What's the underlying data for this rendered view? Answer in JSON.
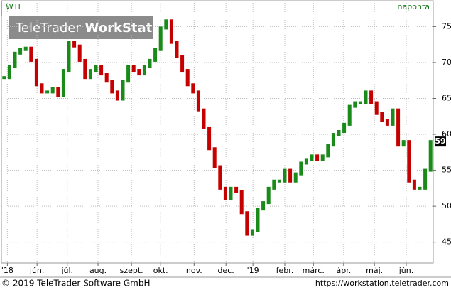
{
  "chart_data": {
    "type": "ohlc-close",
    "title": "WTI",
    "subtitle": "naponta",
    "watermark": {
      "brand": "TeleTrader",
      "product": "WorkStation"
    },
    "footer": {
      "copyright": "© 2019 TeleTrader Software GmbH",
      "url": "https://workstation.teletrader.com"
    },
    "up_color": "#1a8a1a",
    "down_color": "#c40000",
    "values": [
      67.9,
      69.4,
      71.3,
      71.8,
      72,
      70.3,
      66.9,
      65.9,
      65.9,
      66.4,
      65.4,
      68.9,
      72.8,
      72.3,
      70.3,
      67.9,
      68.9,
      69.4,
      68.4,
      67.4,
      65.9,
      64.9,
      67.4,
      69.4,
      68.9,
      68.4,
      69.4,
      70.3,
      71.8,
      74.8,
      75.8,
      72.8,
      70.8,
      68.9,
      66.9,
      65.9,
      63.4,
      60.9,
      58,
      55.5,
      52.5,
      51,
      52.5,
      52,
      49.1,
      46.1,
      46.6,
      49.6,
      50.5,
      52.5,
      53.5,
      53.5,
      55,
      53.5,
      54.5,
      56,
      56.5,
      57,
      56.5,
      57,
      58.5,
      60,
      60.4,
      61.4,
      63.9,
      64.4,
      64.4,
      65.9,
      64.4,
      62.9,
      61.9,
      61.4,
      63.4,
      58.5,
      59,
      53.5,
      52.5,
      52.5,
      55,
      59
    ],
    "xlim": [
      0,
      80
    ],
    "xticks": [
      {
        "value": 1.1,
        "label": "'18"
      },
      {
        "value": 6.6,
        "label": "jún."
      },
      {
        "value": 12.2,
        "label": "júl."
      },
      {
        "value": 17.9,
        "label": "aug."
      },
      {
        "value": 24.1,
        "label": "szept."
      },
      {
        "value": 29.5,
        "label": "okt."
      },
      {
        "value": 35.7,
        "label": "nov."
      },
      {
        "value": 41.6,
        "label": "dec."
      },
      {
        "value": 46.6,
        "label": "'19"
      },
      {
        "value": 52.5,
        "label": "febr."
      },
      {
        "value": 57.8,
        "label": "márc."
      },
      {
        "value": 63.4,
        "label": "ápr."
      },
      {
        "value": 69.1,
        "label": "máj."
      },
      {
        "value": 75,
        "label": "jún."
      }
    ],
    "ylim": [
      42.1,
      78.6
    ],
    "yticks": [
      45,
      50,
      55,
      60,
      65,
      70,
      75
    ],
    "grid": true
  }
}
